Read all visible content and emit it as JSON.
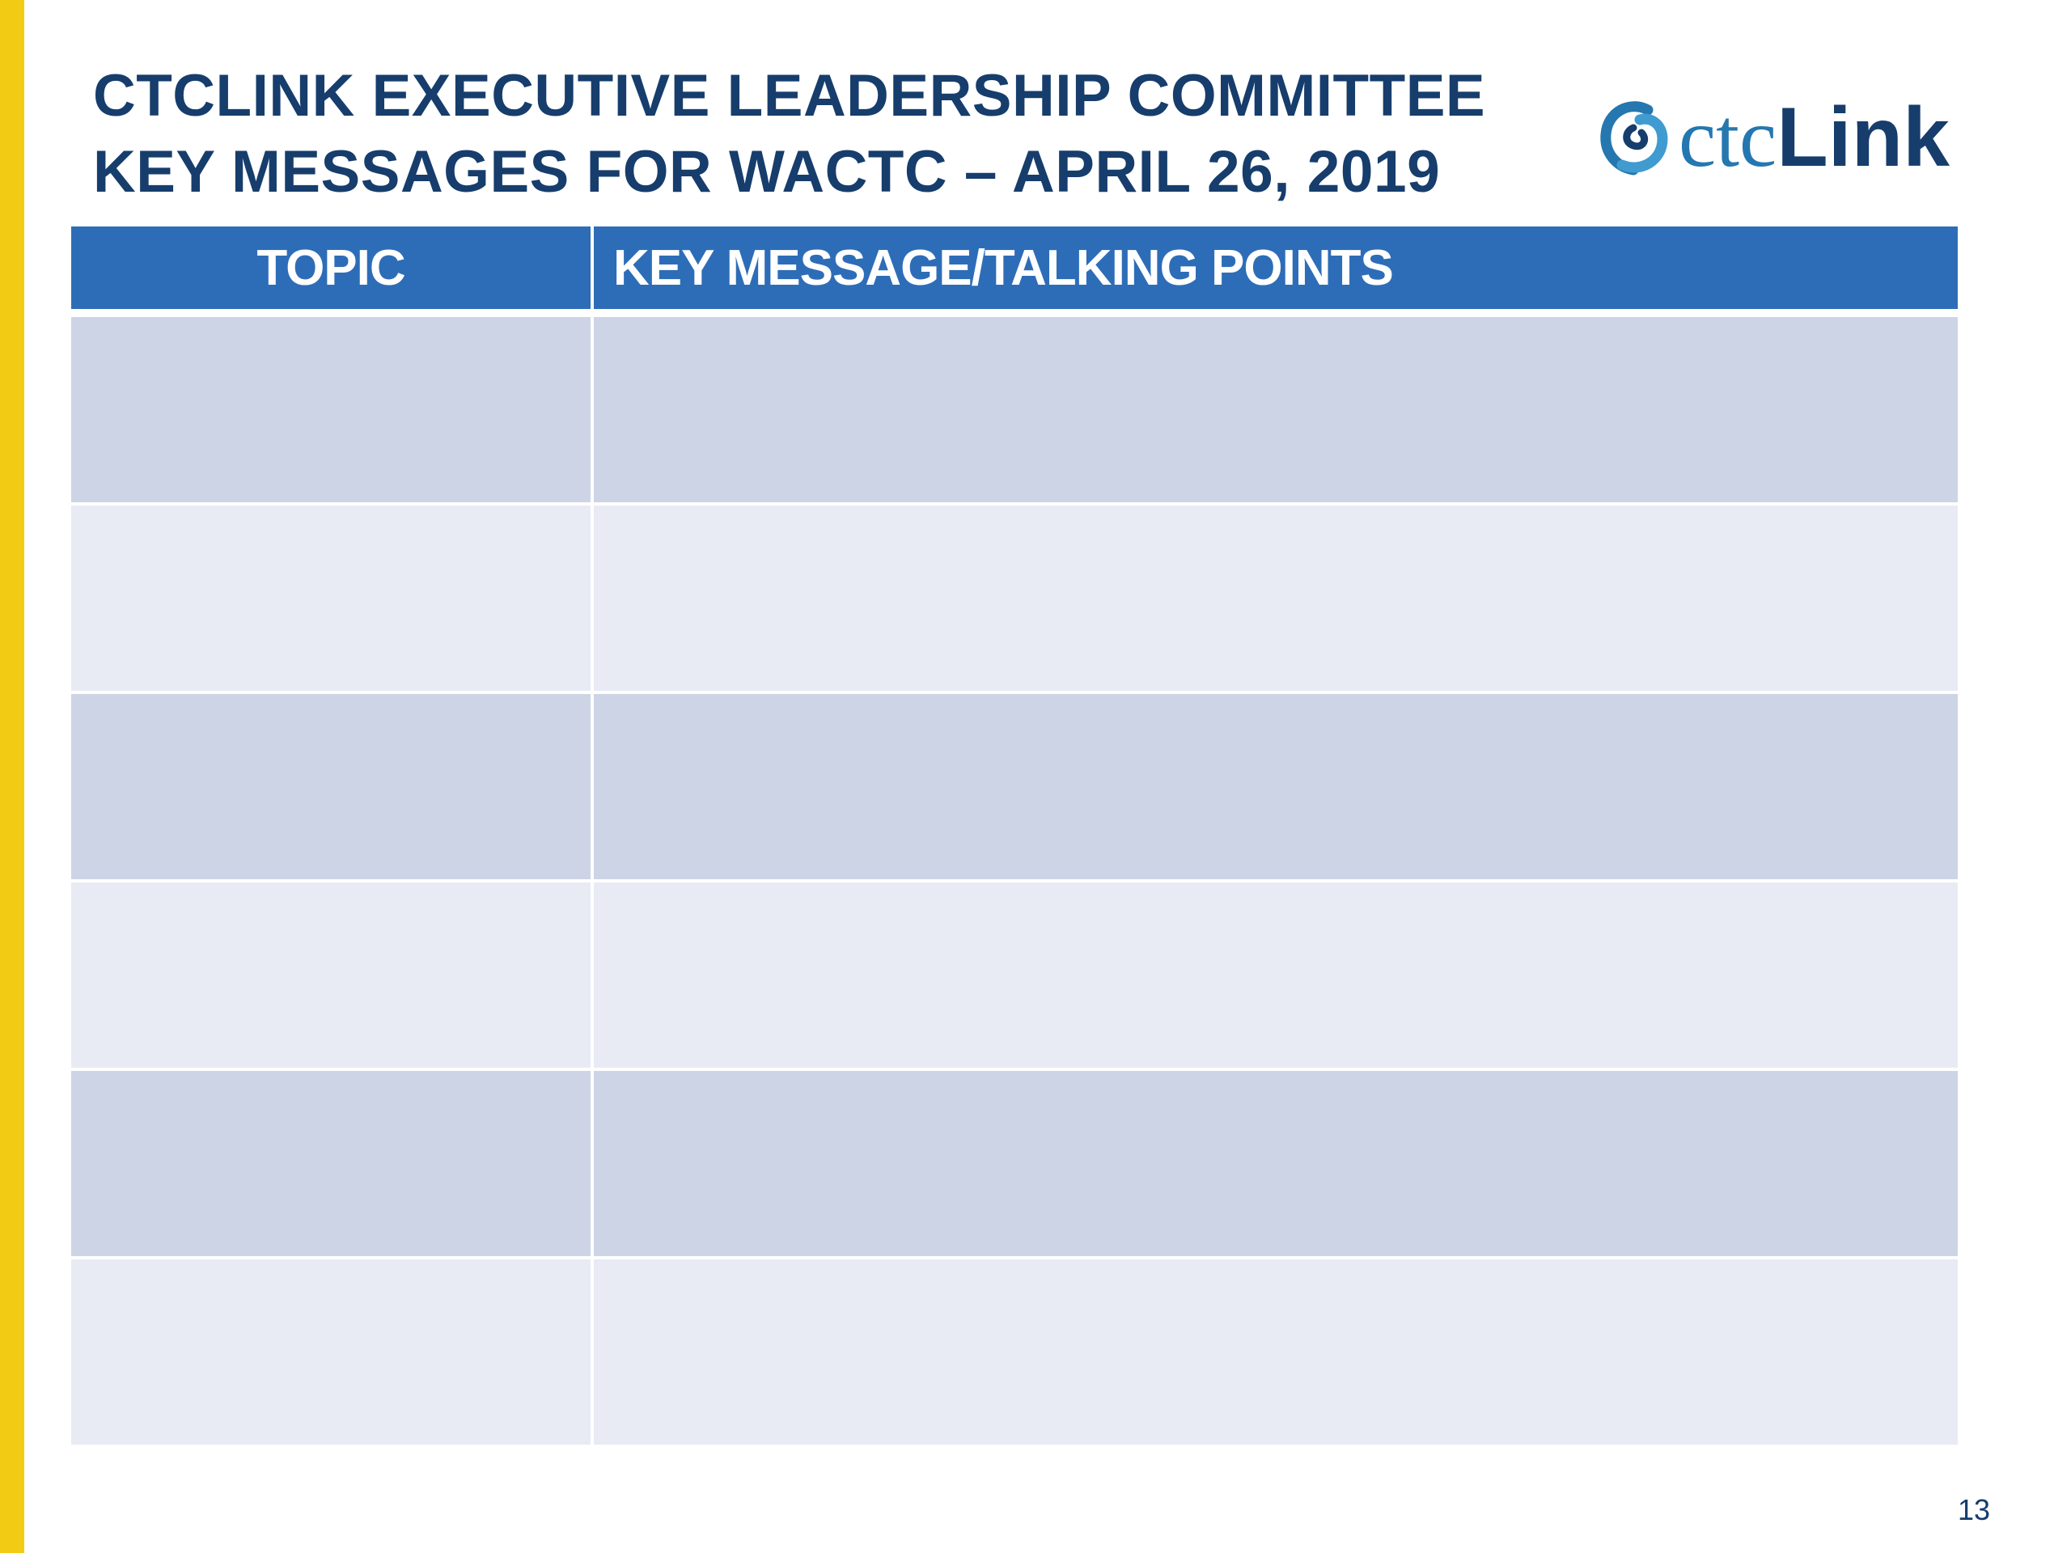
{
  "title": {
    "line1": "CTCLINK EXECUTIVE LEADERSHIP COMMITTEE",
    "line2": "KEY MESSAGES FOR WACTC – APRIL 26, 2019"
  },
  "logo": {
    "prefix": "ctc",
    "suffix": "Link",
    "icon": "ctclink-swirl-icon"
  },
  "table": {
    "headers": [
      "TOPIC",
      "KEY MESSAGE/TALKING POINTS"
    ],
    "rows": [
      [
        "",
        ""
      ],
      [
        "",
        ""
      ],
      [
        "",
        ""
      ],
      [
        "",
        ""
      ],
      [
        "",
        ""
      ],
      [
        "",
        ""
      ]
    ]
  },
  "footer": {
    "page_number": "13"
  },
  "colors": {
    "accent_bar": "#f2cc14",
    "title": "#163d6c",
    "header_bg": "#2d6db8",
    "row_dark": "#cdd4e6",
    "row_light": "#e8ebf4"
  }
}
